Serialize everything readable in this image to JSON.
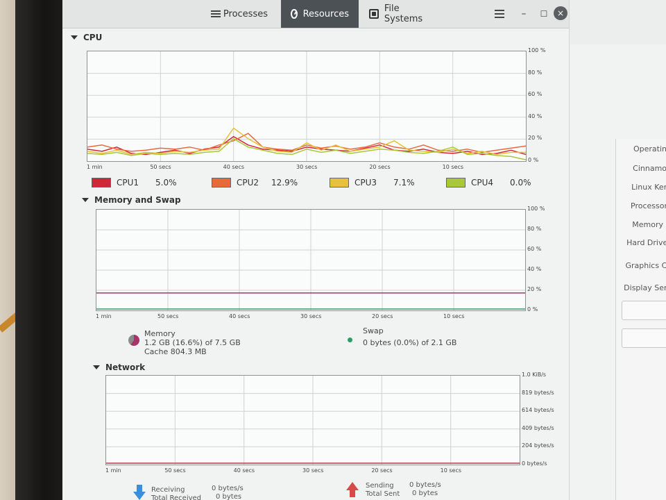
{
  "tabs": [
    {
      "label": "Processes",
      "icon": "list-icon"
    },
    {
      "label": "Resources",
      "icon": "gauge-icon"
    },
    {
      "label": "File Systems",
      "icon": "disk-icon"
    }
  ],
  "window_controls": {
    "menu": "menu-icon",
    "minimize": "–",
    "maximize": "☐",
    "close": "×"
  },
  "cpu": {
    "title": "CPU",
    "y_ticks": [
      "100 %",
      "80 %",
      "60 %",
      "40 %",
      "20 %",
      "0 %"
    ],
    "x_ticks": [
      "1 min",
      "50 secs",
      "40 secs",
      "30 secs",
      "20 secs",
      "10 secs"
    ],
    "legend": [
      {
        "name": "CPU1",
        "value": "5.0%",
        "color": "#d1263a"
      },
      {
        "name": "CPU2",
        "value": "12.9%",
        "color": "#e8693a"
      },
      {
        "name": "CPU3",
        "value": "7.1%",
        "color": "#e6c23a"
      },
      {
        "name": "CPU4",
        "value": "0.0%",
        "color": "#a8c83a"
      }
    ]
  },
  "memory": {
    "title": "Memory and Swap",
    "y_ticks": [
      "100 %",
      "80 %",
      "60 %",
      "40 %",
      "20 %",
      "0 %"
    ],
    "x_ticks": [
      "1 min",
      "50 secs",
      "40 secs",
      "30 secs",
      "20 secs",
      "10 secs"
    ],
    "memory_label": "Memory",
    "memory_usage": "1.2 GB (16.6%) of 7.5 GB",
    "cache": "Cache 804.3 MB",
    "swap_label": "Swap",
    "swap_usage": "0 bytes (0.0%) of 2.1 GB"
  },
  "network": {
    "title": "Network",
    "y_ticks": [
      "1.0 KiB/s",
      "819 bytes/s",
      "614 bytes/s",
      "409 bytes/s",
      "204 bytes/s",
      "0 bytes/s"
    ],
    "x_ticks": [
      "1 min",
      "50 secs",
      "40 secs",
      "30 secs",
      "20 secs",
      "10 secs"
    ],
    "receiving_label": "Receiving",
    "receiving_value": "0 bytes/s",
    "total_received_label": "Total Received",
    "total_received_value": "0 bytes",
    "sending_label": "Sending",
    "sending_value": "0 bytes/s",
    "total_sent_label": "Total Sent",
    "total_sent_value": "0 bytes"
  },
  "side_window": {
    "items": [
      "Operating",
      "Cinnamon",
      "Linux Kern",
      "Processor",
      "Memory",
      "Hard Drives",
      "Graphics Ca",
      "Display Serv"
    ]
  },
  "chart_data": [
    {
      "type": "line",
      "title": "CPU",
      "x": [
        60,
        58,
        56,
        54,
        52,
        50,
        48,
        46,
        44,
        42,
        40,
        38,
        36,
        34,
        32,
        30,
        28,
        26,
        24,
        22,
        20,
        18,
        16,
        14,
        12,
        10,
        8,
        6,
        4,
        2,
        0
      ],
      "xlabel": "",
      "ylabel": "",
      "ylim": [
        0,
        100
      ],
      "series": [
        {
          "name": "CPU1",
          "values": [
            10,
            8,
            12,
            6,
            5,
            7,
            9,
            6,
            10,
            12,
            22,
            14,
            10,
            9,
            8,
            12,
            10,
            9,
            8,
            11,
            14,
            9,
            8,
            10,
            7,
            6,
            8,
            5,
            6,
            9,
            5
          ]
        },
        {
          "name": "CPU2",
          "values": [
            12,
            14,
            10,
            8,
            9,
            11,
            10,
            12,
            9,
            14,
            18,
            25,
            12,
            10,
            9,
            14,
            11,
            13,
            10,
            12,
            16,
            12,
            10,
            14,
            9,
            8,
            10,
            7,
            9,
            11,
            13
          ]
        },
        {
          "name": "CPU3",
          "values": [
            8,
            6,
            9,
            5,
            7,
            6,
            8,
            7,
            9,
            10,
            30,
            20,
            12,
            8,
            7,
            16,
            9,
            14,
            8,
            10,
            12,
            18,
            9,
            8,
            7,
            10,
            6,
            8,
            5,
            7,
            7
          ]
        },
        {
          "name": "CPU4",
          "values": [
            6,
            5,
            7,
            4,
            6,
            5,
            6,
            5,
            7,
            8,
            20,
            12,
            9,
            6,
            5,
            10,
            7,
            9,
            6,
            8,
            10,
            9,
            7,
            6,
            8,
            12,
            5,
            6,
            4,
            3,
            0
          ]
        }
      ]
    },
    {
      "type": "line",
      "title": "Memory and Swap",
      "x": [
        60,
        0
      ],
      "ylim": [
        0,
        100
      ],
      "series": [
        {
          "name": "Memory",
          "values": [
            16.6,
            16.6
          ]
        },
        {
          "name": "Swap",
          "values": [
            0,
            0
          ]
        }
      ]
    },
    {
      "type": "line",
      "title": "Network",
      "x": [
        60,
        0
      ],
      "ylim": [
        0,
        1024
      ],
      "series": [
        {
          "name": "Receiving",
          "values": [
            0,
            0
          ]
        },
        {
          "name": "Sending",
          "values": [
            0,
            0
          ]
        }
      ]
    }
  ]
}
